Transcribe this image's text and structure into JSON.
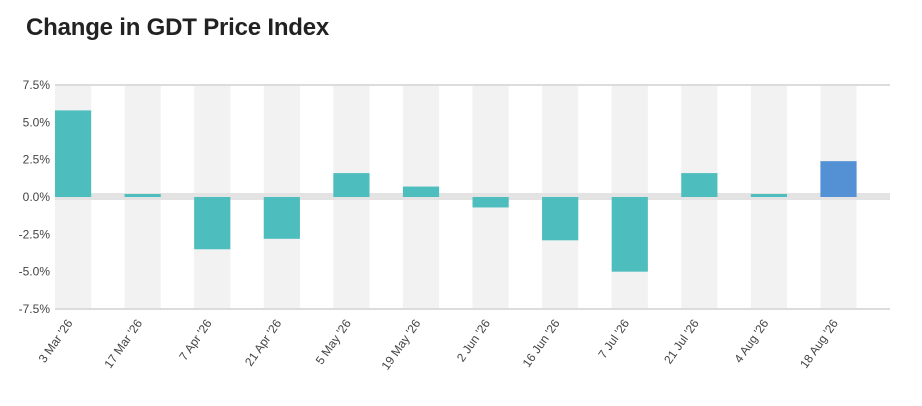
{
  "chart_data": {
    "type": "bar",
    "title": "Change in GDT Price Index",
    "xlabel": "",
    "ylabel": "",
    "categories": [
      "3 Mar '26",
      "17 Mar '26",
      "7 Apr '26",
      "21 Apr '26",
      "5 May '26",
      "19 May '26",
      "2 Jun '26",
      "16 Jun '26",
      "7 Jul '26",
      "21 Jul '26",
      "4 Aug '26",
      "18 Aug '26"
    ],
    "values": [
      5.8,
      0.2,
      -3.5,
      -2.8,
      1.6,
      0.7,
      -0.7,
      -2.9,
      -5.0,
      1.6,
      0.2,
      2.4
    ],
    "ylim": [
      -7.5,
      7.5
    ],
    "yticks": [
      7.5,
      5.0,
      2.5,
      0.0,
      -2.5,
      -5.0,
      -7.5
    ],
    "ytick_labels": [
      "7.5%",
      "5.0%",
      "2.5%",
      "0.0%",
      "-2.5%",
      "-5.0%",
      "-7.5%"
    ],
    "colors": {
      "default": "#4dbdbe",
      "highlight": "#5491d4",
      "band": "#f2f2f2",
      "zero_band": "#e3e3e3"
    },
    "highlight_index": 11,
    "grid": false,
    "legend": "none"
  }
}
